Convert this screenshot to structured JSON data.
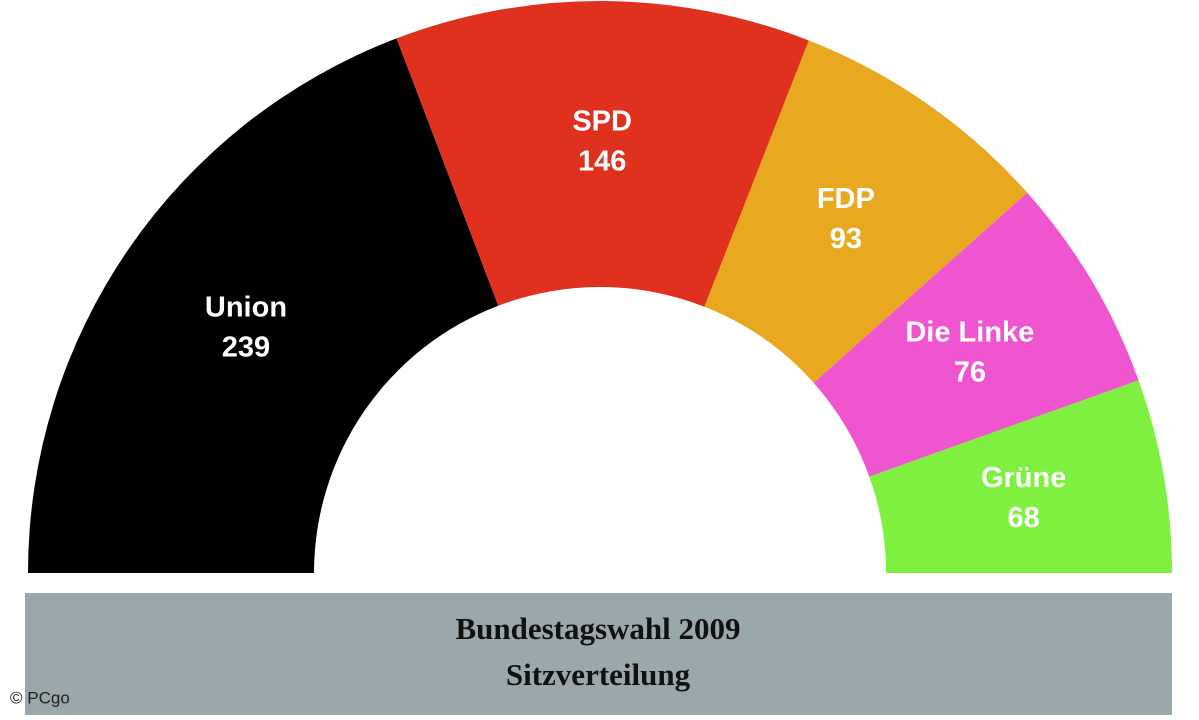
{
  "chart_data": {
    "type": "half-donut",
    "categories": [
      "Union",
      "SPD",
      "FDP",
      "Die Linke",
      "Grüne"
    ],
    "values": [
      239,
      146,
      93,
      76,
      68
    ],
    "colors": [
      "#000000",
      "#e0301e",
      "#e8a820",
      "#f055d0",
      "#80f040"
    ],
    "title": "Bundestagswahl 2009",
    "subtitle": "Sitzverteilung",
    "credit": "© PCgo"
  }
}
